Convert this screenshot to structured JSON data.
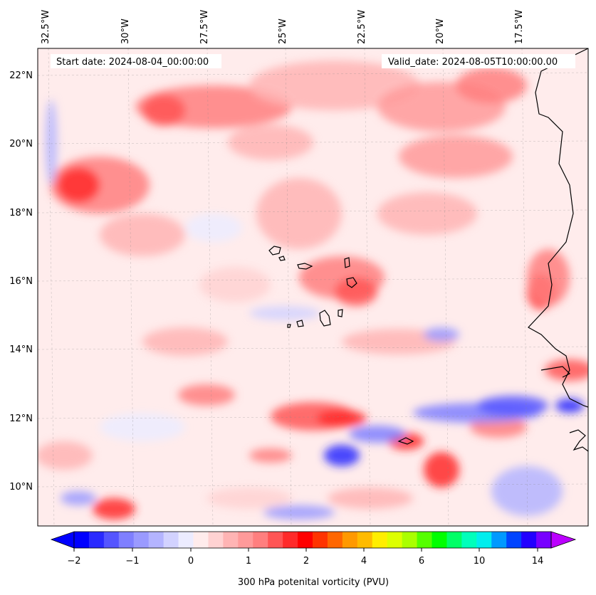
{
  "header": {
    "start_date": "Start date: 2024-08-04_00:00:00",
    "valid_date": "Valid_date: 2024-08-05T10:00:00.00"
  },
  "axes": {
    "lon_ticks": [
      "32.5°W",
      "30°W",
      "27.5°W",
      "25°W",
      "22.5°W",
      "20°W",
      "17.5°W"
    ],
    "lat_ticks": [
      "22°N",
      "20°N",
      "18°N",
      "16°N",
      "14°N",
      "12°N",
      "10°N"
    ]
  },
  "colorbar": {
    "label": "300 hPa potenital vorticity (PVU)",
    "tick_labels": [
      "−2",
      "−1",
      "0",
      "1",
      "2",
      "4",
      "6",
      "10",
      "14"
    ],
    "colors": [
      "#0000ff",
      "#2a2aff",
      "#5555ff",
      "#7f7fff",
      "#9a9aff",
      "#b4b4ff",
      "#d2d2ff",
      "#ececff",
      "#ffecec",
      "#ffd2d2",
      "#ffb4b4",
      "#ff9a9a",
      "#ff7f7f",
      "#ff5555",
      "#ff2a2a",
      "#ff0000",
      "#ff3300",
      "#ff6600",
      "#ff9900",
      "#ffbb00",
      "#ffee00",
      "#ddff00",
      "#aaff00",
      "#55ff00",
      "#00ff00",
      "#00ff66",
      "#00ffbb",
      "#00eeee",
      "#0099ff",
      "#0044ff",
      "#2200ff",
      "#7700ff"
    ],
    "under_color": "#0000ff",
    "over_color": "#bb00ff"
  },
  "map": {
    "background_color": "#ffecec",
    "coastline_color": "#000000"
  }
}
